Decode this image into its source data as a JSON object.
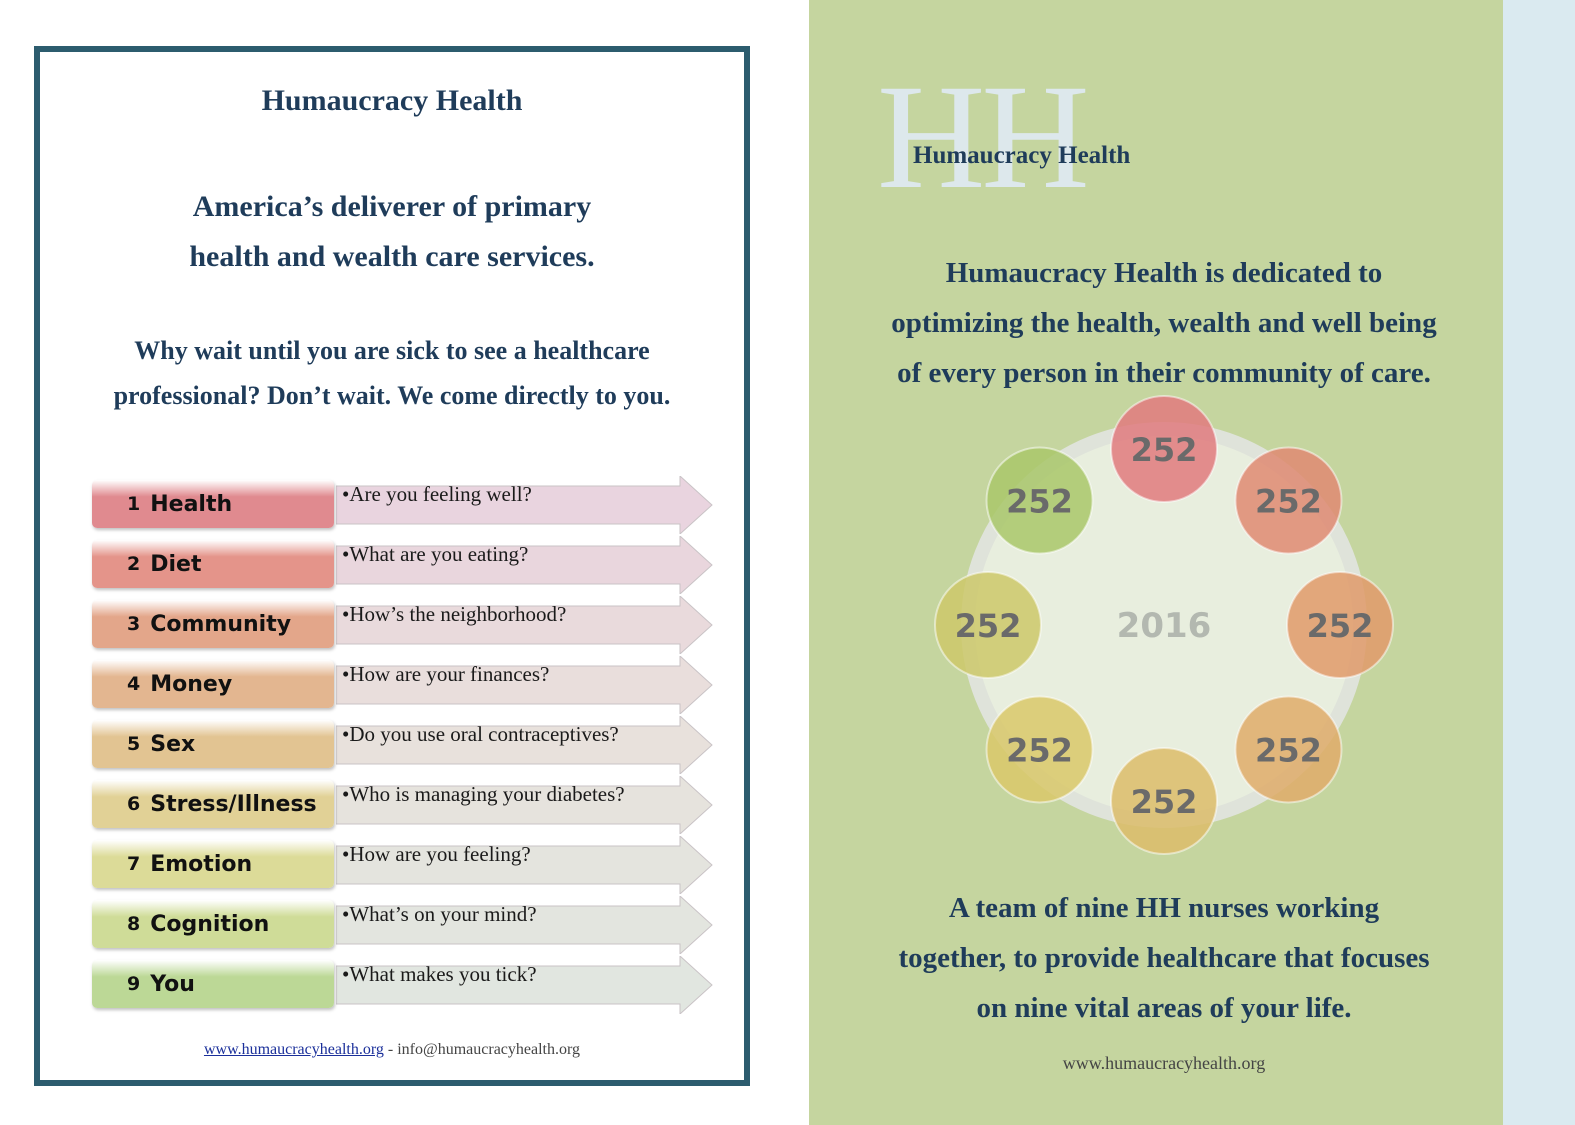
{
  "left": {
    "title": "Humaucracy Health",
    "tagline_line1": "America’s deliverer of primary",
    "tagline_line2": "health and wealth care services.",
    "why_line1": "Why wait until you are sick to see a healthcare",
    "why_line2": "professional?  Don’t wait. We come directly to you.",
    "rows": [
      {
        "num": "1",
        "label": "Health",
        "question": "•Are you feeling well?",
        "color": "#e08a8f",
        "arrow_color": "#e9d4df"
      },
      {
        "num": "2",
        "label": "Diet",
        "question": "•What are you eating?",
        "color": "#e4948a",
        "arrow_color": "#e9d6dd"
      },
      {
        "num": "3",
        "label": "Community",
        "question": "•How’s the neighborhood?",
        "color": "#e3a68a",
        "arrow_color": "#e9dadc"
      },
      {
        "num": "4",
        "label": "Money",
        "question": "•How are your finances?",
        "color": "#e3b690",
        "arrow_color": "#e9dedc"
      },
      {
        "num": "5",
        "label": "Sex",
        "question": "•Do you use oral contraceptives?",
        "color": "#e2c492",
        "arrow_color": "#e8e1dc"
      },
      {
        "num": "6",
        "label": "Stress/Illness",
        "question": "•Who is managing your diabetes?",
        "color": "#e1d196",
        "arrow_color": "#e6e3dd"
      },
      {
        "num": "7",
        "label": "Emotion",
        "question": "•How are you feeling?",
        "color": "#dcdb98",
        "arrow_color": "#e4e4de"
      },
      {
        "num": "8",
        "label": "Cognition",
        "question": "•What’s on your mind?",
        "color": "#cfdc98",
        "arrow_color": "#e3e5df"
      },
      {
        "num": "9",
        "label": "You",
        "question": "•What makes you tick?",
        "color": "#bcd896",
        "arrow_color": "#e1e6e0"
      }
    ],
    "footer_link": "www.humaucracyhealth.org",
    "footer_sep": " - ",
    "footer_email": "info@humaucracyhealth.org"
  },
  "right": {
    "watermark": "HH",
    "brand": "Humaucracy  Health",
    "mission_line1": "Humaucracy Health is dedicated to",
    "mission_line2": "optimizing the health, wealth and well being",
    "mission_line3": "of every person in their community of care.",
    "cycle_center": "2016",
    "cycle_nodes": [
      {
        "label": "252",
        "color": "#e07a7e"
      },
      {
        "label": "252",
        "color": "#df8a72"
      },
      {
        "label": "252",
        "color": "#e09a6a"
      },
      {
        "label": "252",
        "color": "#dfac6a"
      },
      {
        "label": "252",
        "color": "#dcbc6a"
      },
      {
        "label": "252",
        "color": "#d9c86a"
      },
      {
        "label": "252",
        "color": "#cdc86a"
      },
      {
        "label": "252",
        "color": "#a9c76a"
      }
    ],
    "team_line1": "A team of nine HH nurses working",
    "team_line2": "together, to provide healthcare that focuses",
    "team_line3": "on nine vital areas of your life.",
    "footer": "www.humaucracyhealth.org"
  }
}
